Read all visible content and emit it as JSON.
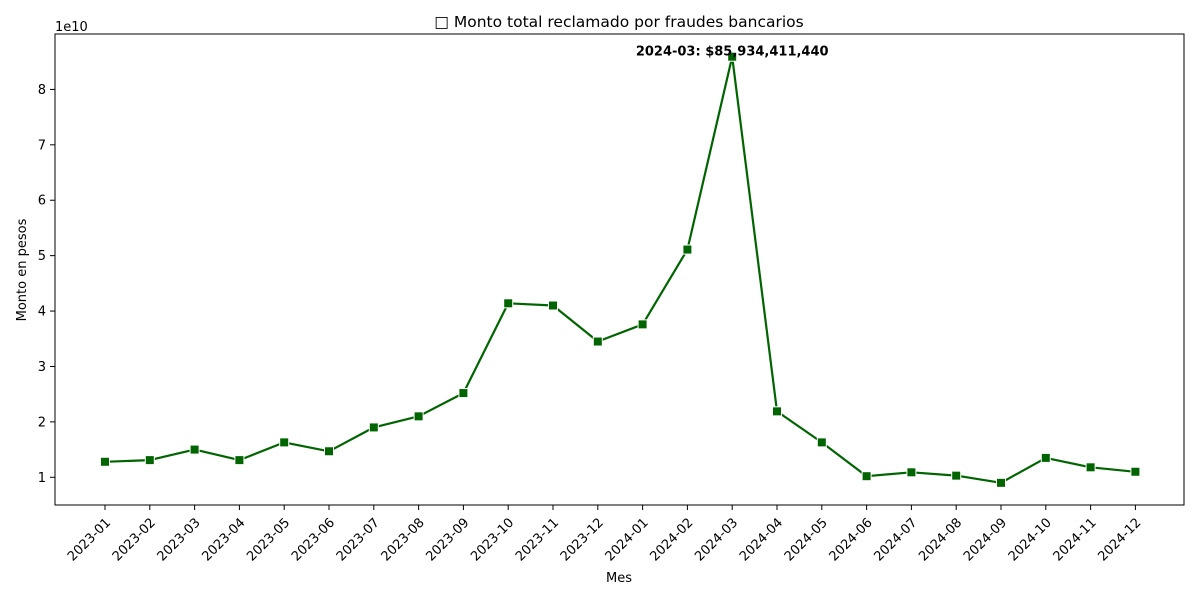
{
  "chart_data": {
    "type": "line",
    "title": "□ Monto total reclamado por fraudes bancarios",
    "xlabel": "Mes",
    "ylabel": "Monto en pesos",
    "y_offset_label": "1e10",
    "y_scale": 10000000000,
    "ylim": [
      0.5,
      9.0
    ],
    "yticks": [
      1,
      2,
      3,
      4,
      5,
      6,
      7,
      8
    ],
    "grid": false,
    "legend": "none",
    "colors": {
      "line": "#006400",
      "marker_edge": "#ffffff"
    },
    "marker": "square",
    "categories": [
      "2023-01",
      "2023-02",
      "2023-03",
      "2023-04",
      "2023-05",
      "2023-06",
      "2023-07",
      "2023-08",
      "2023-09",
      "2023-10",
      "2023-11",
      "2023-12",
      "2024-01",
      "2024-02",
      "2024-03",
      "2024-04",
      "2024-05",
      "2024-06",
      "2024-07",
      "2024-08",
      "2024-09",
      "2024-10",
      "2024-11",
      "2024-12"
    ],
    "values": [
      1.28,
      1.31,
      1.5,
      1.31,
      1.63,
      1.47,
      1.9,
      2.1,
      2.52,
      4.14,
      4.1,
      3.45,
      3.76,
      5.11,
      8.59,
      2.19,
      1.63,
      1.02,
      1.09,
      1.03,
      0.9,
      1.35,
      1.18,
      1.1
    ],
    "annotation": {
      "category": "2024-03",
      "text": "2024-03: $85,934,411,440"
    }
  }
}
